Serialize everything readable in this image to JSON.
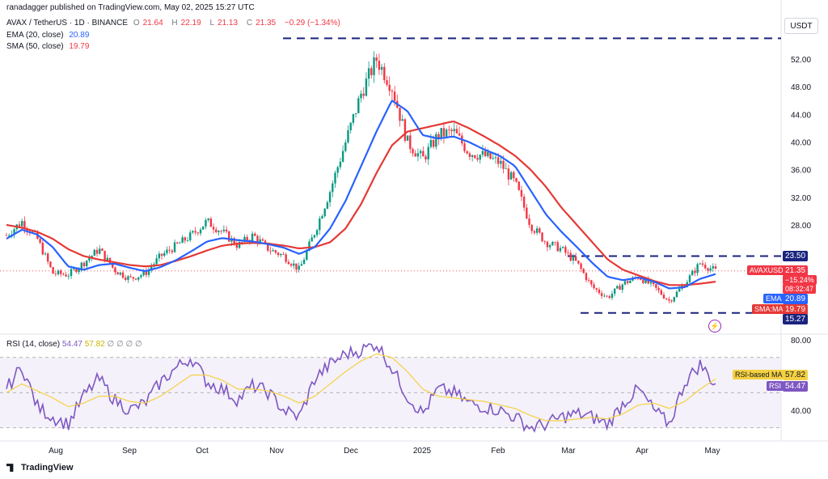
{
  "header": {
    "published": "ranadagger published on TradingView.com, May 02, 2025 15:27 UTC",
    "symbol": "AVAX / TetherUS · 1D · BINANCE",
    "o_label": "O",
    "o_value": "21.64",
    "h_label": "H",
    "h_value": "22.19",
    "l_label": "L",
    "l_value": "21.13",
    "c_label": "C",
    "c_value": "21.35",
    "change": "−0.29 (−1.34%)",
    "ema_label": "EMA (20, close)",
    "ema_value": "20.89",
    "sma_label": "SMA (50, close)",
    "sma_value": "19.79",
    "currency": "USDT"
  },
  "rsi_header": {
    "label": "RSI (14, close)",
    "value": "54.47",
    "ma_value": "57.82",
    "extras": "∅ ∅ ∅ ∅"
  },
  "labels": {
    "resist_top": "23.50",
    "symbol_tag": "AVAXUSDT",
    "price": "21.35",
    "pct": "−15.24%",
    "countdown": "08:32:47",
    "ema_tag": "EMA",
    "ema_val": "20.89",
    "sma_tag": "SMA:MA",
    "sma_val": "19.79",
    "support": "15.27",
    "rsi_ma_tag": "RSI-based MA",
    "rsi_ma_val": "57.82",
    "rsi_tag": "RSI",
    "rsi_val": "54.47"
  },
  "colors": {
    "up": "#089981",
    "down": "#f23645",
    "ema": "#2962ff",
    "sma": "#e53935",
    "rsi": "#7e57c2",
    "rsi_ma": "#f5d142",
    "level": "#1a237e",
    "band": "#ede7f6"
  },
  "footer": {
    "brand": "TradingView"
  },
  "chart_data": {
    "type": "candlestick",
    "price_axis": {
      "ticks": [
        28.0,
        32.0,
        36.0,
        40.0,
        44.0,
        48.0,
        52.0
      ]
    },
    "rsi_axis": {
      "ticks": [
        40.0,
        80.0
      ]
    },
    "time_axis": {
      "ticks": [
        "Aug",
        "Sep",
        "Oct",
        "Nov",
        "Dec",
        "2025",
        "Feb",
        "Mar",
        "Apr",
        "May"
      ]
    },
    "levels": [
      {
        "name": "resistance",
        "value": 23.5
      },
      {
        "name": "support",
        "value": 15.27
      },
      {
        "name": "peak",
        "value": 55.0
      }
    ],
    "weekly_close": [
      26.5,
      28.5,
      26.0,
      21.0,
      20.8,
      22.5,
      24.5,
      21.5,
      20.2,
      21.0,
      23.5,
      25.0,
      26.5,
      28.5,
      27.0,
      25.0,
      26.5,
      24.5,
      23.5,
      21.5,
      27.0,
      33.0,
      40.0,
      47.0,
      52.0,
      48.0,
      40.0,
      37.5,
      41.0,
      41.5,
      38.5,
      38.0,
      37.0,
      34.0,
      28.0,
      25.5,
      24.5,
      22.5,
      19.0,
      17.5,
      19.5,
      20.5,
      19.0,
      17.0,
      19.5,
      22.5,
      21.35
    ],
    "ema20_weekly": [
      26.0,
      27.3,
      26.6,
      24.8,
      22.0,
      21.5,
      22.2,
      22.4,
      21.8,
      21.3,
      21.9,
      22.9,
      24.2,
      25.6,
      26.1,
      25.8,
      25.6,
      25.2,
      24.7,
      23.8,
      24.8,
      27.5,
      31.5,
      36.5,
      41.5,
      46.0,
      44.5,
      41.0,
      40.5,
      40.8,
      40.0,
      38.9,
      38.0,
      36.5,
      33.0,
      29.5,
      27.0,
      24.8,
      22.5,
      20.5,
      20.0,
      20.4,
      19.8,
      18.8,
      19.0,
      20.2,
      20.89
    ],
    "sma50_weekly": [
      28.0,
      27.6,
      27.0,
      26.0,
      24.5,
      23.5,
      23.0,
      22.6,
      22.2,
      22.0,
      22.2,
      22.8,
      23.5,
      24.3,
      25.0,
      25.3,
      25.4,
      25.3,
      25.0,
      24.6,
      24.8,
      25.5,
      27.5,
      31.0,
      35.5,
      39.5,
      41.5,
      42.0,
      42.5,
      43.0,
      42.0,
      40.8,
      39.5,
      38.0,
      36.0,
      33.5,
      30.5,
      28.0,
      25.5,
      23.0,
      21.5,
      20.7,
      19.9,
      19.3,
      19.3,
      19.5,
      19.79
    ],
    "rsi_weekly": [
      52,
      65,
      42,
      36,
      32,
      48,
      58,
      46,
      40,
      44,
      56,
      64,
      70,
      56,
      52,
      46,
      54,
      50,
      40,
      36,
      58,
      66,
      72,
      74,
      78,
      64,
      48,
      38,
      52,
      50,
      44,
      42,
      40,
      36,
      30,
      32,
      36,
      38,
      36,
      32,
      44,
      52,
      40,
      32,
      56,
      66,
      54.47
    ],
    "rsi_ma_weekly": [
      50,
      55,
      51,
      47,
      42,
      44,
      48,
      48,
      45,
      44,
      48,
      54,
      60,
      60,
      57,
      52,
      52,
      51,
      48,
      44,
      48,
      55,
      62,
      68,
      72,
      70,
      62,
      52,
      48,
      47,
      46,
      45,
      43,
      41,
      37,
      34,
      34,
      35,
      36,
      35,
      38,
      43,
      44,
      41,
      45,
      52,
      57.82
    ]
  }
}
